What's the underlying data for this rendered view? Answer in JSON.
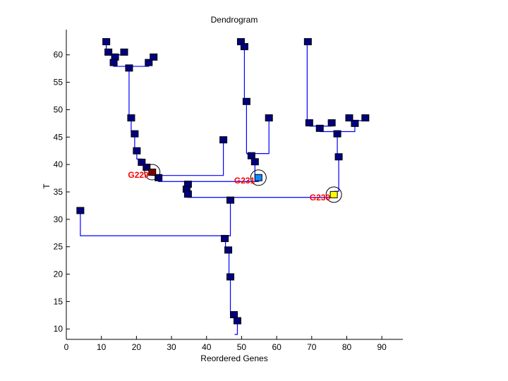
{
  "chart_data": {
    "type": "dendrogram",
    "title": "Dendrogram",
    "xlabel": "Reordered Genes",
    "ylabel": "T",
    "xlim": [
      0,
      96
    ],
    "ylim": [
      8.1,
      64.6
    ],
    "xticks": [
      0,
      10,
      20,
      30,
      40,
      50,
      60,
      70,
      80,
      90
    ],
    "yticks": [
      10,
      15,
      20,
      25,
      30,
      35,
      40,
      45,
      50,
      55,
      60
    ],
    "grid": false,
    "colors": {
      "line": "#0000ff",
      "node": "#000080",
      "node_stroke": "#000000",
      "annotation": "#ff0000"
    },
    "nodes": [
      {
        "x": 11.4,
        "y": 62.4
      },
      {
        "x": 12.0,
        "y": 60.5
      },
      {
        "x": 16.5,
        "y": 60.5
      },
      {
        "x": 13.9,
        "y": 59.6
      },
      {
        "x": 13.5,
        "y": 58.6
      },
      {
        "x": 17.9,
        "y": 57.6
      },
      {
        "x": 23.5,
        "y": 58.6
      },
      {
        "x": 24.9,
        "y": 59.6
      },
      {
        "x": 18.5,
        "y": 48.5
      },
      {
        "x": 19.5,
        "y": 45.6
      },
      {
        "x": 20.1,
        "y": 42.5
      },
      {
        "x": 21.5,
        "y": 40.4
      },
      {
        "x": 22.9,
        "y": 39.5
      },
      {
        "x": 26.3,
        "y": 37.6
      },
      {
        "x": 44.8,
        "y": 44.5
      },
      {
        "x": 34.7,
        "y": 36.4
      },
      {
        "x": 34.3,
        "y": 35.5
      },
      {
        "x": 34.7,
        "y": 34.6
      },
      {
        "x": 46.8,
        "y": 33.5
      },
      {
        "x": 4.0,
        "y": 31.6
      },
      {
        "x": 45.2,
        "y": 26.5
      },
      {
        "x": 46.2,
        "y": 24.4
      },
      {
        "x": 46.8,
        "y": 19.5
      },
      {
        "x": 47.8,
        "y": 12.6
      },
      {
        "x": 48.8,
        "y": 11.5
      },
      {
        "x": 49.8,
        "y": 62.4
      },
      {
        "x": 50.8,
        "y": 61.5
      },
      {
        "x": 51.4,
        "y": 51.5
      },
      {
        "x": 57.8,
        "y": 48.5
      },
      {
        "x": 52.8,
        "y": 41.6
      },
      {
        "x": 53.8,
        "y": 40.5
      },
      {
        "x": 68.9,
        "y": 62.4
      },
      {
        "x": 69.3,
        "y": 47.6
      },
      {
        "x": 75.7,
        "y": 47.6
      },
      {
        "x": 72.3,
        "y": 46.6
      },
      {
        "x": 80.7,
        "y": 48.5
      },
      {
        "x": 85.3,
        "y": 48.5
      },
      {
        "x": 82.3,
        "y": 47.5
      },
      {
        "x": 77.3,
        "y": 45.6
      },
      {
        "x": 77.7,
        "y": 41.4
      }
    ],
    "highlighted": [
      {
        "label": "G229",
        "x": 24.5,
        "y": 38.6,
        "color": "#800000"
      },
      {
        "label": "G231",
        "x": 54.8,
        "y": 37.6,
        "color": "#0a8cff"
      },
      {
        "label": "G230",
        "x": 76.3,
        "y": 34.5,
        "color": "#ffff00"
      }
    ],
    "links": [
      [
        [
          11.4,
          62.4
        ],
        [
          11.4,
          60.0
        ],
        [
          16.5,
          60.0
        ],
        [
          16.5,
          60.5
        ]
      ],
      [
        [
          13.9,
          59.6
        ],
        [
          13.9,
          57.9
        ]
      ],
      [
        [
          13.5,
          58.6
        ],
        [
          13.5,
          57.9
        ],
        [
          23.5,
          57.9
        ],
        [
          23.5,
          58.6
        ]
      ],
      [
        [
          24.9,
          59.6
        ],
        [
          24.9,
          59.1
        ],
        [
          23.5,
          59.1
        ],
        [
          23.5,
          58.6
        ]
      ],
      [
        [
          17.9,
          57.6
        ],
        [
          17.9,
          48.5
        ],
        [
          18.5,
          48.5
        ]
      ],
      [
        [
          18.5,
          48.5
        ],
        [
          18.5,
          46.0
        ],
        [
          19.5,
          46.0
        ],
        [
          19.5,
          45.6
        ]
      ],
      [
        [
          19.5,
          45.6
        ],
        [
          19.5,
          42.5
        ],
        [
          20.1,
          42.5
        ]
      ],
      [
        [
          20.1,
          42.5
        ],
        [
          20.1,
          41.0
        ],
        [
          21.5,
          41.0
        ],
        [
          21.5,
          40.4
        ]
      ],
      [
        [
          21.5,
          40.4
        ],
        [
          21.5,
          39.9
        ],
        [
          22.9,
          39.9
        ],
        [
          22.9,
          39.5
        ]
      ],
      [
        [
          22.9,
          39.5
        ],
        [
          22.9,
          39.0
        ],
        [
          24.5,
          39.0
        ],
        [
          24.5,
          38.6
        ]
      ],
      [
        [
          24.5,
          38.6
        ],
        [
          24.5,
          38.0
        ],
        [
          44.8,
          38.0
        ],
        [
          44.8,
          44.5
        ]
      ],
      [
        [
          26.3,
          37.6
        ],
        [
          26.3,
          36.9
        ],
        [
          54.8,
          36.9
        ],
        [
          54.8,
          37.6
        ]
      ],
      [
        [
          54.8,
          37.3
        ],
        [
          53.8,
          37.3
        ],
        [
          53.8,
          40.5
        ]
      ],
      [
        [
          53.8,
          40.5
        ],
        [
          53.8,
          41.0
        ],
        [
          52.8,
          41.0
        ],
        [
          52.8,
          41.6
        ]
      ],
      [
        [
          52.8,
          41.6
        ],
        [
          51.4,
          42.0
        ],
        [
          57.8,
          42.0
        ],
        [
          57.8,
          48.5
        ]
      ],
      [
        [
          51.4,
          42.0
        ],
        [
          51.4,
          51.5
        ]
      ],
      [
        [
          51.4,
          51.5
        ],
        [
          50.8,
          51.5
        ],
        [
          50.8,
          61.5
        ]
      ],
      [
        [
          50.8,
          61.5
        ],
        [
          50.8,
          62.0
        ],
        [
          49.8,
          62.0
        ],
        [
          49.8,
          62.4
        ]
      ],
      [
        [
          34.7,
          36.4
        ],
        [
          34.7,
          35.9
        ],
        [
          34.3,
          35.9
        ],
        [
          34.3,
          35.5
        ]
      ],
      [
        [
          34.3,
          35.5
        ],
        [
          34.3,
          35.0
        ],
        [
          34.7,
          35.0
        ],
        [
          34.7,
          34.6
        ]
      ],
      [
        [
          34.7,
          34.6
        ],
        [
          34.7,
          34.0
        ],
        [
          76.3,
          34.0
        ],
        [
          76.3,
          34.5
        ]
      ],
      [
        [
          76.3,
          35.1
        ],
        [
          77.7,
          35.1
        ],
        [
          77.7,
          41.4
        ]
      ],
      [
        [
          77.7,
          41.4
        ],
        [
          77.3,
          41.4
        ],
        [
          77.3,
          45.6
        ]
      ],
      [
        [
          77.3,
          45.6
        ],
        [
          77.3,
          46.0
        ],
        [
          72.3,
          46.0
        ],
        [
          82.3,
          46.0
        ],
        [
          82.3,
          47.5
        ]
      ],
      [
        [
          72.3,
          46.6
        ],
        [
          72.3,
          47.0
        ],
        [
          69.3,
          47.0
        ],
        [
          75.7,
          47.0
        ],
        [
          75.7,
          47.6
        ]
      ],
      [
        [
          68.7,
          62.4
        ],
        [
          68.7,
          47.6
        ],
        [
          69.3,
          47.6
        ]
      ],
      [
        [
          82.3,
          47.5
        ],
        [
          82.3,
          48.0
        ],
        [
          80.7,
          48.0
        ],
        [
          85.3,
          48.0
        ],
        [
          85.3,
          48.5
        ]
      ],
      [
        [
          46.8,
          33.5
        ],
        [
          46.8,
          27.0
        ],
        [
          4.0,
          27.0
        ],
        [
          4.0,
          31.6
        ]
      ],
      [
        [
          46.8,
          27.0
        ],
        [
          45.4,
          27.0
        ],
        [
          45.4,
          26.5
        ]
      ],
      [
        [
          45.4,
          26.5
        ],
        [
          45.4,
          24.9
        ],
        [
          46.2,
          24.9
        ],
        [
          46.2,
          24.4
        ]
      ],
      [
        [
          46.4,
          24.4
        ],
        [
          46.4,
          19.5
        ],
        [
          46.8,
          19.5
        ]
      ],
      [
        [
          46.8,
          19.5
        ],
        [
          46.8,
          12.8
        ],
        [
          47.8,
          12.8
        ],
        [
          47.8,
          12.6
        ]
      ],
      [
        [
          47.8,
          12.6
        ],
        [
          47.8,
          12.0
        ],
        [
          48.8,
          12.0
        ],
        [
          48.8,
          11.5
        ]
      ],
      [
        [
          48.8,
          11.5
        ],
        [
          48.8,
          9.0
        ],
        [
          48.0,
          9.0
        ]
      ]
    ]
  }
}
